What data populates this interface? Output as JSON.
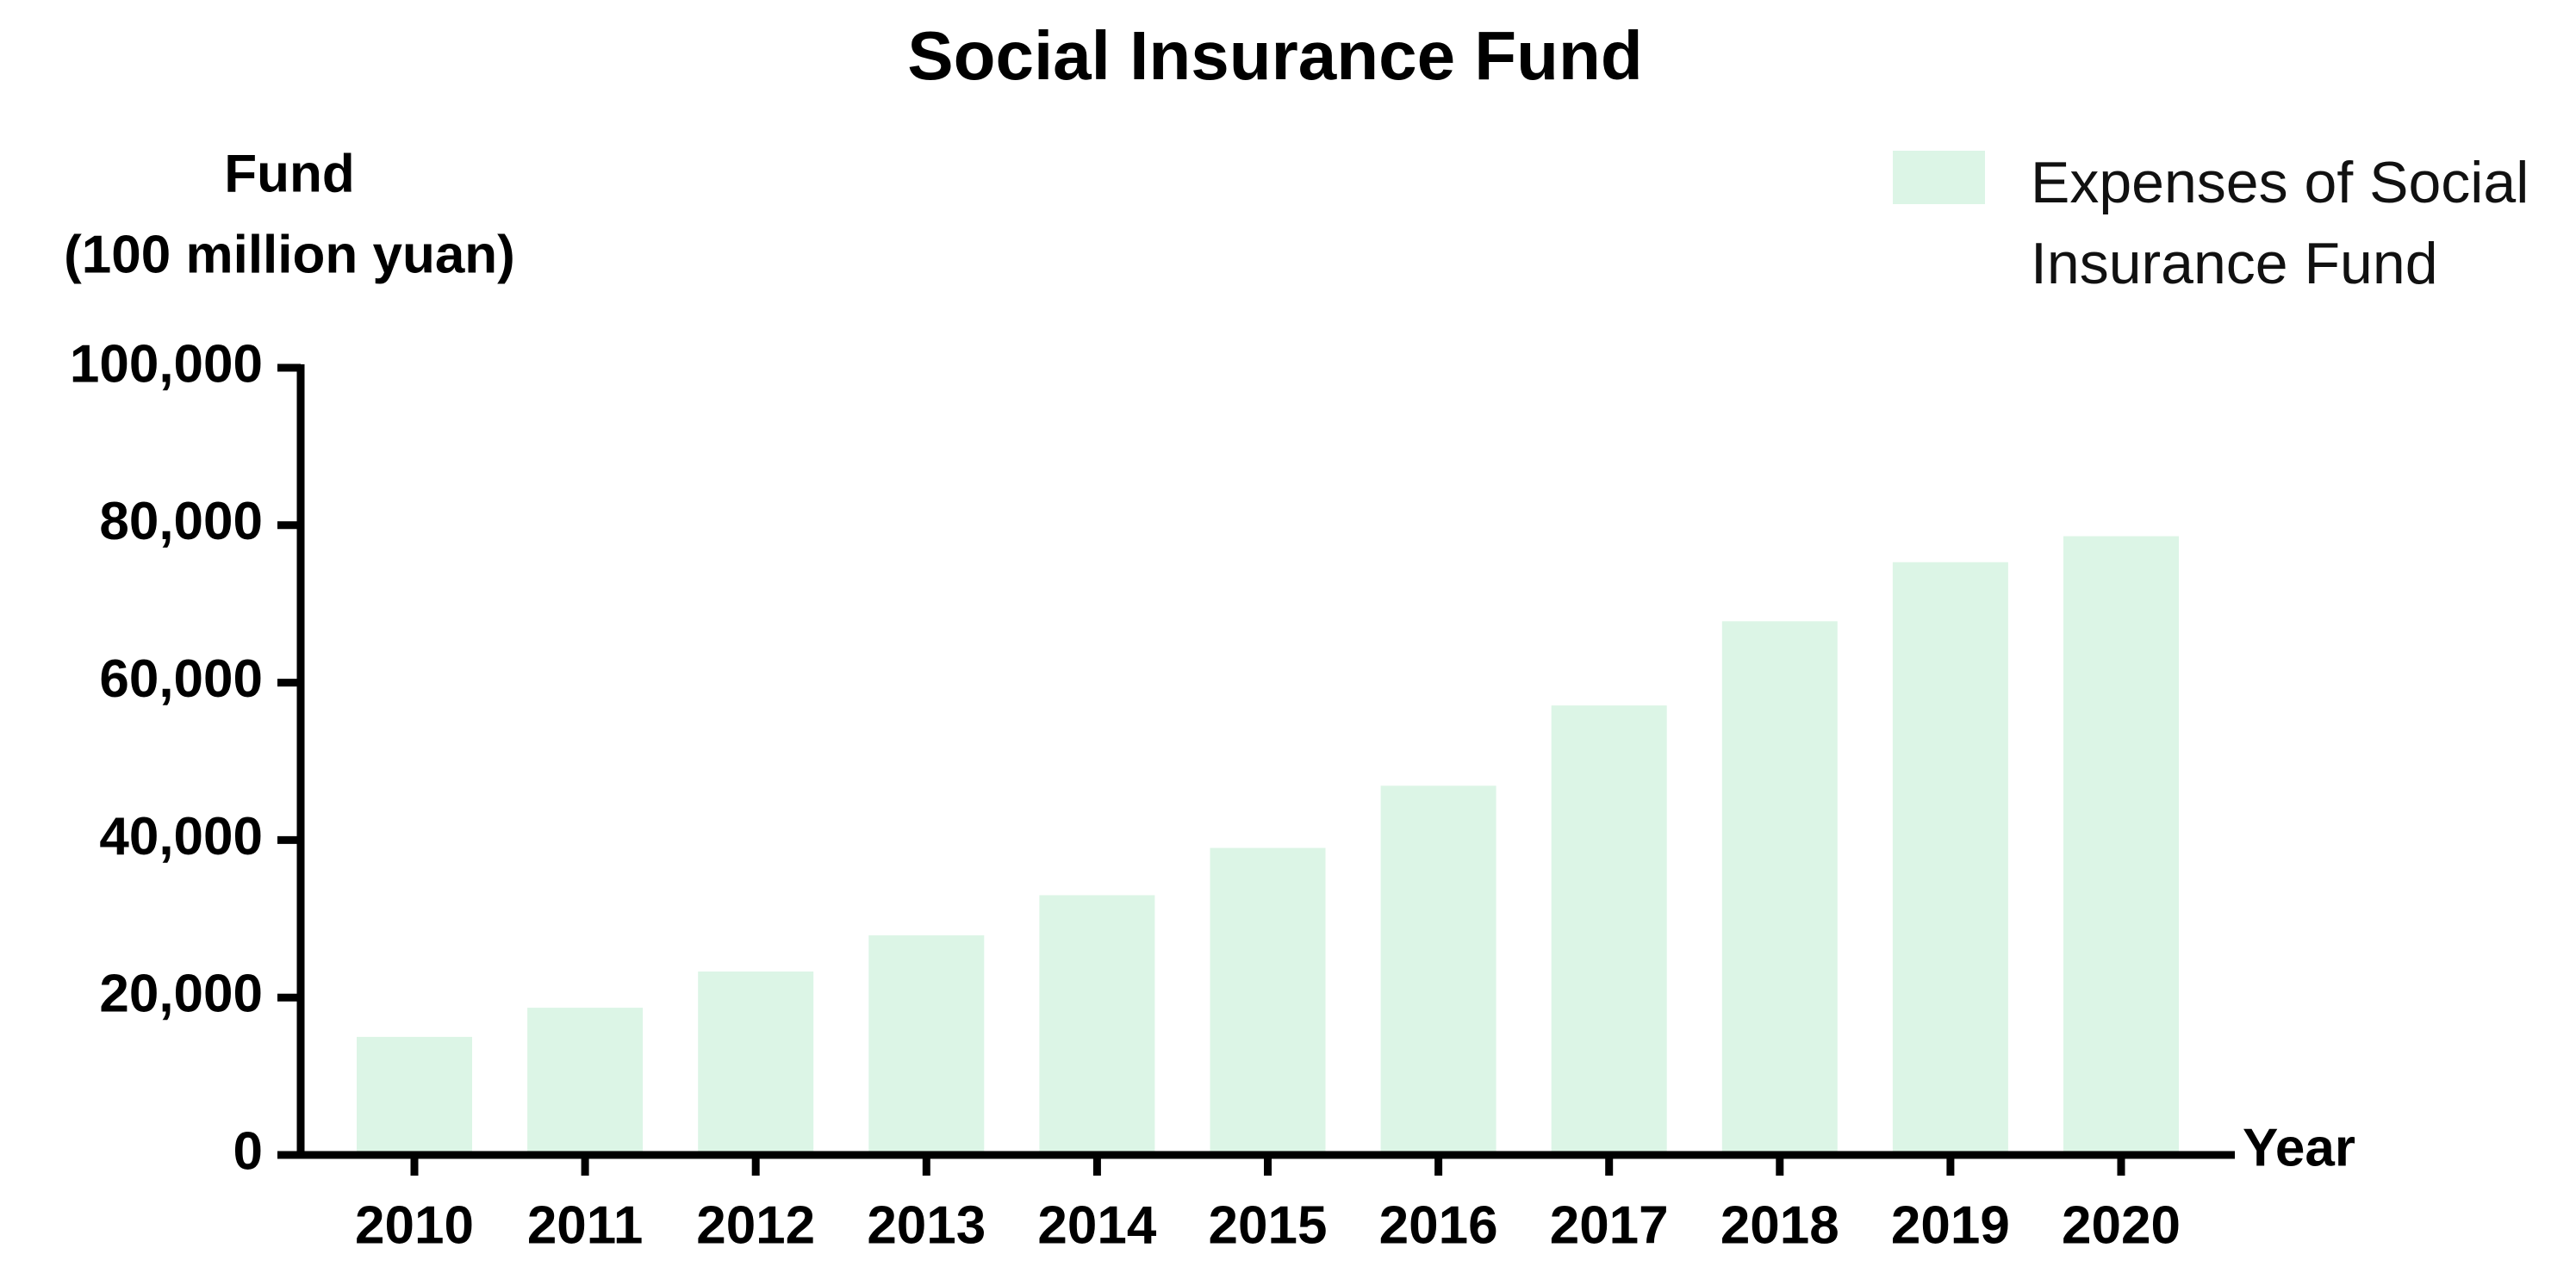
{
  "chart_data": {
    "type": "bar",
    "title": "Social Insurance Fund",
    "y_label": [
      "Fund",
      "(100 million yuan)"
    ],
    "x_label": "Year",
    "categories": [
      "2010",
      "2011",
      "2012",
      "2013",
      "2014",
      "2015",
      "2016",
      "2017",
      "2018",
      "2019",
      "2020"
    ],
    "series": [
      {
        "name": "Expenses of Social Insurance Fund",
        "color": "#dcf5e6",
        "values": [
          15000,
          18700,
          23300,
          27900,
          33000,
          39000,
          46900,
          57100,
          67800,
          75300,
          78600
        ]
      }
    ],
    "ylim": [
      0,
      100000
    ],
    "yticks": [
      0,
      {
        "value": 20000,
        "label": "20,000"
      },
      {
        "value": 40000,
        "label": "40,000"
      },
      {
        "value": 60000,
        "label": "60,000"
      },
      {
        "value": 80000,
        "label": "80,000"
      },
      {
        "value": 100000,
        "label": "100,000"
      }
    ],
    "legend": "top-right",
    "grid": false
  }
}
